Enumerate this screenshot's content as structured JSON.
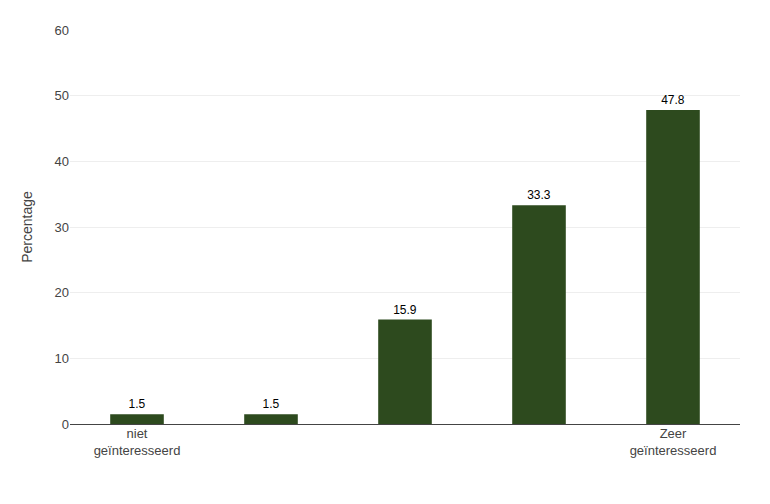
{
  "chart_data": {
    "type": "bar",
    "categories": [
      "niet\ngeïnteresseerd",
      null,
      null,
      null,
      "Zeer\ngeïnteresseerd"
    ],
    "values": [
      1.5,
      1.5,
      15.9,
      33.3,
      47.8
    ],
    "color": "#2d4a1e",
    "ylabel": "Percentage",
    "ylim": [
      0,
      60
    ],
    "yticks": [
      0,
      10,
      20,
      30,
      40,
      50,
      60
    ],
    "grid": true,
    "data_labels": true
  }
}
